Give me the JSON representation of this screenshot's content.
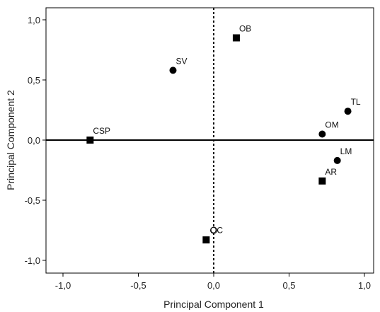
{
  "chart_data": {
    "type": "scatter",
    "xlabel": "Principal Component 1",
    "ylabel": "Principal Component 2",
    "xlim": [
      -1.1,
      1.1
    ],
    "ylim": [
      -1.1,
      1.1
    ],
    "xticks": [
      -1.0,
      -0.5,
      0.0,
      0.5,
      1.0
    ],
    "yticks": [
      -1.0,
      -0.5,
      0.0,
      0.5,
      1.0
    ],
    "xtick_labels": [
      "-1,0",
      "-0,5",
      "0,0",
      "0,5",
      "1,0"
    ],
    "ytick_labels": [
      "-1,0",
      "-0,5",
      "0,0",
      "0,5",
      "1,0"
    ],
    "grid": false,
    "reference_lines": {
      "horizontal_at_y": 0.0,
      "vertical_at_x": 0.0,
      "vertical_style": "dotted"
    },
    "points": [
      {
        "label": "OB",
        "x": 0.15,
        "y": 0.85,
        "marker": "square"
      },
      {
        "label": "SV",
        "x": -0.27,
        "y": 0.58,
        "marker": "circle"
      },
      {
        "label": "TL",
        "x": 0.89,
        "y": 0.24,
        "marker": "circle"
      },
      {
        "label": "OM",
        "x": 0.72,
        "y": 0.05,
        "marker": "circle"
      },
      {
        "label": "CSP",
        "x": -0.82,
        "y": 0.0,
        "marker": "square"
      },
      {
        "label": "LM",
        "x": 0.82,
        "y": -0.17,
        "marker": "circle"
      },
      {
        "label": "AR",
        "x": 0.72,
        "y": -0.34,
        "marker": "square"
      },
      {
        "label": "OC",
        "x": 0.0,
        "y": -0.75,
        "marker": "open-circle"
      },
      {
        "label": "",
        "x": -0.05,
        "y": -0.83,
        "marker": "square"
      }
    ]
  }
}
